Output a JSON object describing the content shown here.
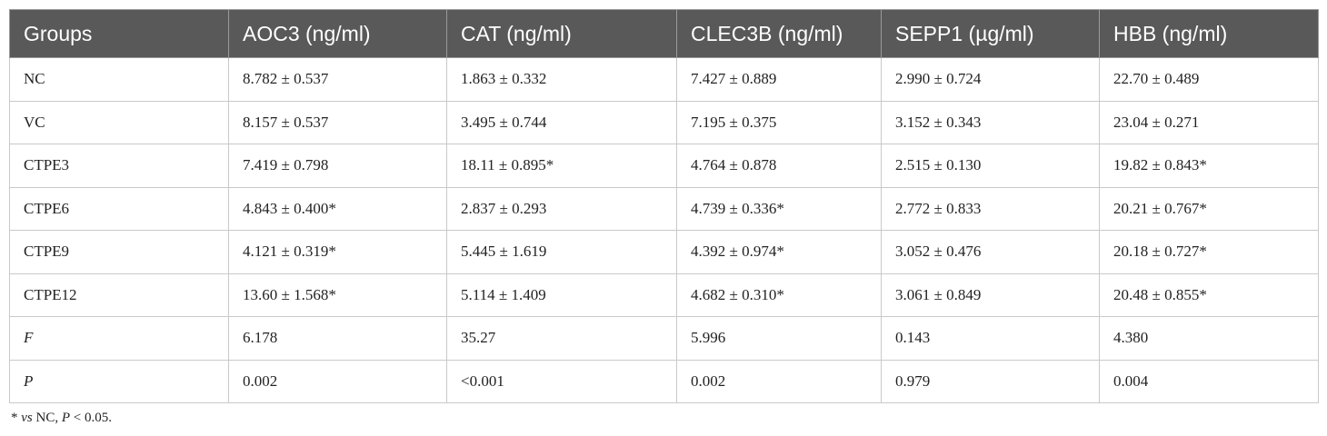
{
  "table": {
    "headers": [
      "Groups",
      "AOC3 (ng/ml)",
      "CAT (ng/ml)",
      "CLEC3B (ng/ml)",
      "SEPP1 (µg/ml)",
      "HBB (ng/ml)"
    ],
    "rows": [
      [
        "NC",
        "8.782 ± 0.537",
        "1.863 ± 0.332",
        "7.427 ± 0.889",
        "2.990 ± 0.724",
        "22.70 ± 0.489"
      ],
      [
        "VC",
        "8.157 ± 0.537",
        "3.495 ± 0.744",
        "7.195 ± 0.375",
        "3.152 ± 0.343",
        "23.04 ± 0.271"
      ],
      [
        "CTPE3",
        "7.419 ± 0.798",
        "18.11 ± 0.895*",
        "4.764 ± 0.878",
        "2.515 ± 0.130",
        "19.82 ± 0.843*"
      ],
      [
        "CTPE6",
        "4.843 ± 0.400*",
        "2.837 ± 0.293",
        "4.739 ± 0.336*",
        "2.772 ± 0.833",
        "20.21 ± 0.767*"
      ],
      [
        "CTPE9",
        "4.121 ± 0.319*",
        "5.445 ± 1.619",
        "4.392 ± 0.974*",
        "3.052 ± 0.476",
        "20.18 ± 0.727*"
      ],
      [
        "CTPE12",
        "13.60 ± 1.568*",
        "5.114 ± 1.409",
        "4.682 ± 0.310*",
        "3.061 ± 0.849",
        "20.48 ± 0.855*"
      ],
      [
        "F",
        "6.178",
        "35.27",
        "5.996",
        "0.143",
        "4.380"
      ],
      [
        "P",
        "0.002",
        "<0.001",
        "0.002",
        "0.979",
        "0.004"
      ]
    ]
  },
  "footnote": {
    "marker": "*",
    "vs": "vs",
    "group": "NC,",
    "p_label": "P",
    "p_value": "< 0.05."
  }
}
